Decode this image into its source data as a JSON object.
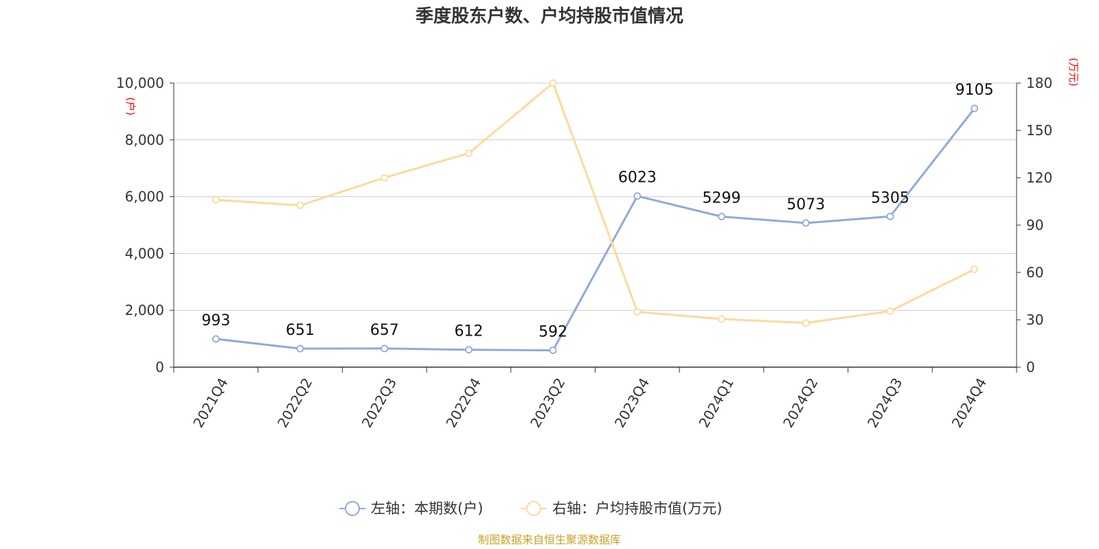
{
  "chart_data": {
    "type": "line",
    "title": "季度股东户数、户均持股市值情况",
    "categories": [
      "2021Q4",
      "2022Q2",
      "2022Q3",
      "2022Q4",
      "2023Q2",
      "2023Q4",
      "2024Q1",
      "2024Q2",
      "2024Q3",
      "2024Q4"
    ],
    "left_axis": {
      "unit": "(户)",
      "ylim": [
        0,
        10000
      ],
      "ticks": [
        "0",
        "2,000",
        "4,000",
        "6,000",
        "8,000",
        "10,000"
      ]
    },
    "right_axis": {
      "unit": "(万元)",
      "ylim": [
        0,
        180
      ],
      "ticks": [
        "0",
        "30",
        "60",
        "90",
        "120",
        "150",
        "180"
      ]
    },
    "series": [
      {
        "name": "左轴：本期数(户)",
        "axis": "left",
        "color": "#8eaadb",
        "values": [
          993,
          651,
          657,
          612,
          592,
          6023,
          5299,
          5073,
          5305,
          9105
        ],
        "labels": [
          "993",
          "651",
          "657",
          "612",
          "592",
          "6023",
          "5299",
          "5073",
          "5305",
          "9105"
        ]
      },
      {
        "name": "右轴：户均持股市值(万元)",
        "axis": "right",
        "color": "#ffd99a",
        "values": [
          106,
          102.5,
          120,
          135.5,
          180,
          35,
          30.5,
          28,
          35.5,
          62
        ]
      }
    ],
    "grid": true,
    "legend_position": "bottom-center"
  },
  "footer": {
    "source": "制图数据来自恒生聚源数据库"
  }
}
